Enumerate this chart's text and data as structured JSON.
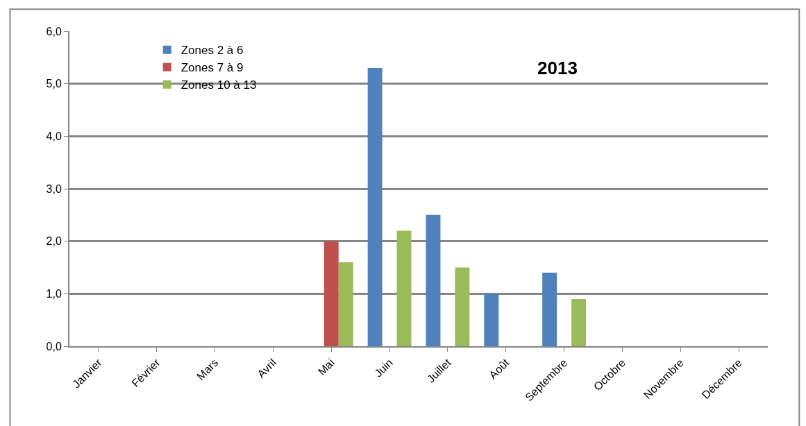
{
  "chart_data": {
    "type": "bar",
    "title": "2013",
    "categories": [
      "Janvier",
      "Février",
      "Mars",
      "Avril",
      "Mai",
      "Juin",
      "Juillet",
      "Août",
      "Septembre",
      "Octobre",
      "Novembre",
      "Décembre"
    ],
    "series": [
      {
        "name": "Zones 2 à 6",
        "color": "#4f81bd",
        "values": [
          null,
          null,
          null,
          null,
          null,
          5.3,
          2.5,
          1.0,
          1.4,
          null,
          null,
          null
        ]
      },
      {
        "name": "Zones 7 à 9",
        "color": "#c0504d",
        "values": [
          null,
          null,
          null,
          null,
          2.0,
          null,
          null,
          null,
          null,
          null,
          null,
          null
        ]
      },
      {
        "name": "Zones 10 à 13",
        "color": "#9bbb59",
        "values": [
          null,
          null,
          null,
          null,
          1.6,
          2.2,
          1.5,
          null,
          0.9,
          null,
          null,
          null
        ]
      }
    ],
    "ylim": [
      0,
      6
    ],
    "yticks": [
      {
        "value": 0,
        "label": "0,0"
      },
      {
        "value": 1,
        "label": "1,0"
      },
      {
        "value": 2,
        "label": "2,0"
      },
      {
        "value": 3,
        "label": "3,0"
      },
      {
        "value": 4,
        "label": "4,0"
      },
      {
        "value": 5,
        "label": "5,0"
      },
      {
        "value": 6,
        "label": "6,0"
      }
    ],
    "grid": "y",
    "legend": "top left"
  }
}
